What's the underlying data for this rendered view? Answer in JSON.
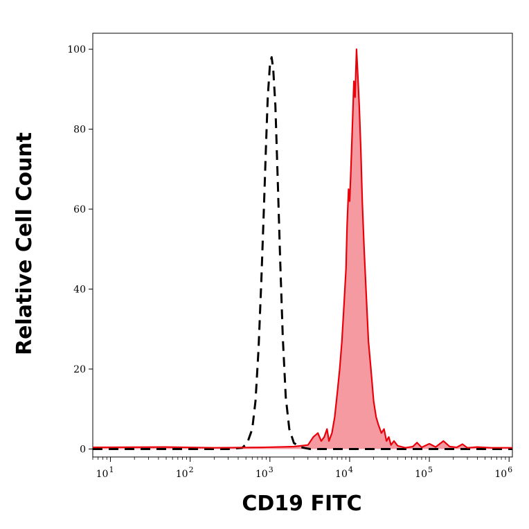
{
  "chart_data": {
    "type": "area",
    "xlabel": "CD19 FITC",
    "ylabel": "Relative Cell Count",
    "x_scale": "log",
    "xlim": [
      6,
      1100000
    ],
    "ylim": [
      -2,
      104
    ],
    "x_ticks": [
      {
        "base": "10",
        "exp": "1",
        "value": 10
      },
      {
        "base": "10",
        "exp": "2",
        "value": 100
      },
      {
        "base": "10",
        "exp": "3",
        "value": 1000
      },
      {
        "base": "10",
        "exp": "4",
        "value": 10000
      },
      {
        "base": "10",
        "exp": "5",
        "value": 100000
      },
      {
        "base": "10",
        "exp": "6",
        "value": 1000000
      }
    ],
    "y_ticks": [
      "0",
      "20",
      "40",
      "60",
      "80",
      "100"
    ],
    "grid": false,
    "series": [
      {
        "color": "#000000",
        "style": "dashed",
        "fill": false,
        "points": [
          [
            6,
            0
          ],
          [
            300,
            0
          ],
          [
            450,
            0.3
          ],
          [
            520,
            1.5
          ],
          [
            600,
            5
          ],
          [
            660,
            12
          ],
          [
            720,
            25
          ],
          [
            780,
            42
          ],
          [
            840,
            60
          ],
          [
            890,
            75
          ],
          [
            940,
            88
          ],
          [
            1000,
            96
          ],
          [
            1050,
            98
          ],
          [
            1100,
            95
          ],
          [
            1170,
            86
          ],
          [
            1250,
            68
          ],
          [
            1340,
            48
          ],
          [
            1450,
            28
          ],
          [
            1580,
            13
          ],
          [
            1750,
            5
          ],
          [
            2000,
            1.5
          ],
          [
            2400,
            0.5
          ],
          [
            2800,
            0.2
          ],
          [
            3200,
            0
          ],
          [
            1100000,
            0
          ]
        ]
      },
      {
        "color": "#e8000b",
        "style": "solid",
        "fill": true,
        "fill_color": "#f59aa0",
        "points": [
          [
            6,
            0.4
          ],
          [
            50,
            0.5
          ],
          [
            200,
            0.3
          ],
          [
            800,
            0.4
          ],
          [
            2000,
            0.6
          ],
          [
            3000,
            1
          ],
          [
            3500,
            3
          ],
          [
            4000,
            4
          ],
          [
            4400,
            2
          ],
          [
            4800,
            3
          ],
          [
            5200,
            5
          ],
          [
            5500,
            2
          ],
          [
            6000,
            4
          ],
          [
            6500,
            8
          ],
          [
            7000,
            14
          ],
          [
            7500,
            20
          ],
          [
            8000,
            27
          ],
          [
            8500,
            36
          ],
          [
            9000,
            45
          ],
          [
            9300,
            56
          ],
          [
            9700,
            65
          ],
          [
            10000,
            62
          ],
          [
            10300,
            68
          ],
          [
            10800,
            80
          ],
          [
            11300,
            92
          ],
          [
            11700,
            88
          ],
          [
            12200,
            100
          ],
          [
            12700,
            93
          ],
          [
            13200,
            86
          ],
          [
            13800,
            75
          ],
          [
            14400,
            62
          ],
          [
            15200,
            50
          ],
          [
            16200,
            38
          ],
          [
            17200,
            27
          ],
          [
            18500,
            20
          ],
          [
            20000,
            12
          ],
          [
            21500,
            8
          ],
          [
            23000,
            6
          ],
          [
            25000,
            4
          ],
          [
            27000,
            5
          ],
          [
            29000,
            2
          ],
          [
            31000,
            3
          ],
          [
            33000,
            1
          ],
          [
            36000,
            2
          ],
          [
            40000,
            0.8
          ],
          [
            50000,
            0.3
          ],
          [
            62000,
            0.6
          ],
          [
            70000,
            1.6
          ],
          [
            80000,
            0.4
          ],
          [
            100000,
            1.3
          ],
          [
            120000,
            0.5
          ],
          [
            150000,
            2
          ],
          [
            180000,
            0.6
          ],
          [
            220000,
            0.4
          ],
          [
            260000,
            1.2
          ],
          [
            300000,
            0.3
          ],
          [
            400000,
            0.5
          ],
          [
            600000,
            0.3
          ],
          [
            1100000,
            0.3
          ]
        ]
      }
    ]
  }
}
